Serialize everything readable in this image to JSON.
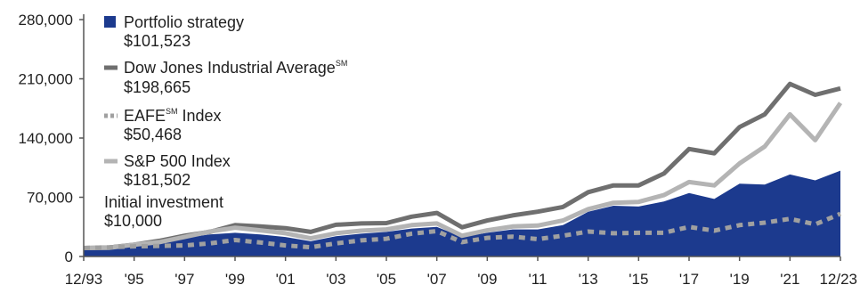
{
  "chart_data": {
    "type": "area",
    "title": "",
    "xlabel": "",
    "ylabel": "",
    "ylim": [
      0,
      280000
    ],
    "yticks": [
      0,
      70000,
      140000,
      210000,
      280000
    ],
    "ytick_labels": [
      "0",
      "70,000",
      "140,000",
      "210,000",
      "280,000"
    ],
    "x": [
      1993,
      1994,
      1995,
      1996,
      1997,
      1998,
      1999,
      2000,
      2001,
      2002,
      2003,
      2004,
      2005,
      2006,
      2007,
      2008,
      2009,
      2010,
      2011,
      2012,
      2013,
      2014,
      2015,
      2016,
      2017,
      2018,
      2019,
      2020,
      2021,
      2022,
      2023
    ],
    "xtick_labels": [
      "12/93",
      "'95",
      "'97",
      "'99",
      "'01",
      "'03",
      "'05",
      "'07",
      "'09",
      "'11",
      "'13",
      "'15",
      "'17",
      "'19",
      "'21",
      "12/23"
    ],
    "xtick_years": [
      1993,
      1995,
      1997,
      1999,
      2001,
      2003,
      2005,
      2007,
      2009,
      2011,
      2013,
      2015,
      2017,
      2019,
      2021,
      2023
    ],
    "series": [
      {
        "name": "Portfolio strategy",
        "end_value": "$101,523",
        "style": "area",
        "color": "#1c3a8e",
        "values": [
          10000,
          10500,
          13500,
          17000,
          22000,
          26000,
          28000,
          26000,
          23000,
          18000,
          24000,
          27000,
          29000,
          33000,
          35000,
          23000,
          28000,
          32000,
          32000,
          37000,
          53000,
          60000,
          59000,
          65000,
          75000,
          68000,
          86000,
          85000,
          97000,
          90000,
          101523
        ]
      },
      {
        "name": "Dow Jones Industrial Average",
        "name_sup": "SM",
        "end_value": "$198,665",
        "style": "line",
        "color": "#6f6f6f",
        "values": [
          10000,
          10500,
          14000,
          18500,
          24500,
          29000,
          37000,
          35500,
          33500,
          29000,
          37500,
          39000,
          39500,
          47000,
          51500,
          34500,
          42500,
          48500,
          53000,
          58500,
          76000,
          84000,
          84000,
          98000,
          127000,
          122000,
          153000,
          168000,
          204000,
          191000,
          198665
        ]
      },
      {
        "name": "EAFE",
        "name_sup": "SM",
        "name_suffix": " Index",
        "end_value": "$50,468",
        "style": "dotted",
        "color": "#a0a0a0",
        "values": [
          10000,
          10800,
          12000,
          12500,
          13000,
          15500,
          19500,
          16500,
          13000,
          11000,
          15500,
          19000,
          21000,
          27000,
          30000,
          17000,
          22000,
          23500,
          20500,
          24500,
          29500,
          27500,
          28000,
          28000,
          35000,
          30500,
          37000,
          40000,
          44500,
          38000,
          50468
        ]
      },
      {
        "name": "S&P 500 Index",
        "end_value": "$181,502",
        "style": "line",
        "color": "#b4b4b4",
        "values": [
          10000,
          10200,
          14000,
          17000,
          23000,
          29500,
          34000,
          31000,
          27500,
          21500,
          27500,
          30500,
          32000,
          37000,
          39000,
          24500,
          31000,
          35500,
          36500,
          42500,
          56000,
          63500,
          64500,
          72500,
          88000,
          84000,
          110000,
          130000,
          168000,
          137500,
          181502
        ]
      }
    ],
    "annotation": {
      "label": "Initial investment",
      "value": "$10,000"
    },
    "grid": false,
    "legend_position": "top-left"
  }
}
